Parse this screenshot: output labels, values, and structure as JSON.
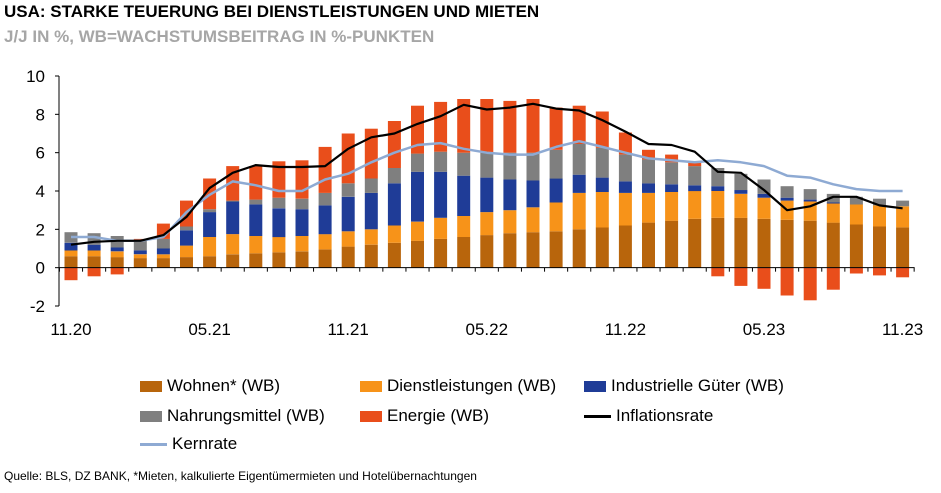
{
  "title": "USA: STARKE TEUERUNG BEI DIENSTLEISTUNGEN UND MIETEN",
  "subtitle": "J/J IN %, WB=WACHSTUMSBEITRAG IN %-PUNKTEN",
  "source": "Quelle: BLS, DZ BANK, *Mieten, kalkulierte Eigentümermieten und Hotelübernachtungen",
  "colors": {
    "wohnen": "#b8650c",
    "dienstleistungen": "#f79319",
    "gueter": "#1f3c97",
    "nahrungsmittel": "#7f7f7f",
    "energie": "#e94e1b",
    "inflationsrate": "#000000",
    "kernrate": "#8eaad3"
  },
  "legend": {
    "wohnen": "Wohnen* (WB)",
    "dienstleistungen": "Dienstleistungen (WB)",
    "gueter": "Industrielle Güter (WB)",
    "nahrungsmittel": "Nahrungsmittel (WB)",
    "energie": "Energie (WB)",
    "inflationsrate": "Inflationsrate",
    "kernrate": "Kernrate"
  },
  "chart_data": {
    "type": "bar",
    "stacked": true,
    "grid": false,
    "ylim": [
      -2,
      10
    ],
    "yticks": [
      "-2",
      "0",
      "2",
      "4",
      "6",
      "8",
      "10"
    ],
    "xtick_labels": [
      {
        "label": "11.20",
        "index": 0
      },
      {
        "label": "05.21",
        "index": 6
      },
      {
        "label": "11.21",
        "index": 12
      },
      {
        "label": "05.22",
        "index": 18
      },
      {
        "label": "11.22",
        "index": 24
      },
      {
        "label": "05.23",
        "index": 30
      },
      {
        "label": "11.23",
        "index": 36
      }
    ],
    "categories": [
      "11.20",
      "12.20",
      "01.21",
      "02.21",
      "03.21",
      "04.21",
      "05.21",
      "06.21",
      "07.21",
      "08.21",
      "09.21",
      "10.21",
      "11.21",
      "12.21",
      "01.22",
      "02.22",
      "03.22",
      "04.22",
      "05.22",
      "06.22",
      "07.22",
      "08.22",
      "09.22",
      "10.22",
      "11.22",
      "12.22",
      "01.23",
      "02.23",
      "03.23",
      "04.23",
      "05.23",
      "06.23",
      "07.23",
      "08.23",
      "09.23",
      "10.23",
      "11.23"
    ],
    "series": [
      {
        "name": "Wohnen* (WB)",
        "kind": "bar",
        "color_key": "wohnen",
        "values": [
          0.6,
          0.6,
          0.55,
          0.5,
          0.5,
          0.55,
          0.6,
          0.7,
          0.75,
          0.8,
          0.85,
          0.95,
          1.1,
          1.2,
          1.3,
          1.4,
          1.5,
          1.6,
          1.7,
          1.8,
          1.85,
          1.9,
          2.0,
          2.1,
          2.2,
          2.35,
          2.45,
          2.55,
          2.6,
          2.6,
          2.55,
          2.5,
          2.45,
          2.35,
          2.25,
          2.15,
          2.1
        ]
      },
      {
        "name": "Dienstleistungen (WB)",
        "kind": "bar",
        "color_key": "dienstleistungen",
        "values": [
          0.3,
          0.3,
          0.3,
          0.2,
          0.2,
          0.6,
          1.0,
          1.05,
          0.9,
          0.8,
          0.8,
          0.8,
          0.8,
          0.8,
          0.9,
          1.0,
          1.1,
          1.1,
          1.2,
          1.2,
          1.3,
          1.5,
          1.9,
          1.85,
          1.7,
          1.55,
          1.5,
          1.45,
          1.4,
          1.25,
          1.1,
          1.0,
          1.0,
          1.0,
          1.05,
          1.1,
          1.1
        ]
      },
      {
        "name": "Industrielle Güter (WB)",
        "kind": "bar",
        "color_key": "gueter",
        "values": [
          0.4,
          0.3,
          0.2,
          0.2,
          0.3,
          0.8,
          1.3,
          1.7,
          1.65,
          1.5,
          1.4,
          1.5,
          1.8,
          1.9,
          2.2,
          2.6,
          2.4,
          2.1,
          1.8,
          1.6,
          1.4,
          1.25,
          0.95,
          0.75,
          0.6,
          0.5,
          0.4,
          0.3,
          0.25,
          0.2,
          0.2,
          0.15,
          0.1,
          0.05,
          0.0,
          0.0,
          0.0
        ]
      },
      {
        "name": "Nahrungsmittel (WB)",
        "kind": "bar",
        "color_key": "nahrungsmittel",
        "values": [
          0.55,
          0.6,
          0.6,
          0.5,
          0.5,
          0.2,
          0.15,
          0.05,
          0.25,
          0.55,
          0.55,
          0.65,
          0.7,
          0.75,
          0.8,
          0.95,
          1.05,
          1.2,
          1.3,
          1.4,
          1.45,
          1.5,
          1.6,
          1.55,
          1.4,
          1.25,
          1.15,
          1.0,
          0.95,
          0.85,
          0.75,
          0.6,
          0.55,
          0.45,
          0.4,
          0.35,
          0.3
        ]
      },
      {
        "name": "Energie (WB)",
        "kind": "bar",
        "color_key": "energie",
        "values": [
          -0.65,
          -0.45,
          -0.35,
          0.1,
          0.8,
          1.35,
          1.6,
          1.8,
          1.75,
          1.9,
          2.0,
          2.4,
          2.6,
          2.6,
          2.45,
          2.5,
          2.6,
          2.8,
          2.8,
          2.7,
          2.8,
          2.2,
          2.0,
          1.9,
          1.15,
          0.5,
          0.4,
          0.2,
          -0.45,
          -0.95,
          -1.1,
          -1.45,
          -1.7,
          -1.15,
          -0.3,
          -0.4,
          -0.5
        ]
      },
      {
        "name": "Inflationsrate",
        "kind": "line",
        "color_key": "inflationsrate",
        "values": [
          1.2,
          1.35,
          1.4,
          1.4,
          1.7,
          2.65,
          4.15,
          4.95,
          5.35,
          5.25,
          5.25,
          5.3,
          6.2,
          6.8,
          7.0,
          7.5,
          7.9,
          8.5,
          8.25,
          8.35,
          8.55,
          8.3,
          8.2,
          7.7,
          7.1,
          6.45,
          6.4,
          6.05,
          5.0,
          4.95,
          4.05,
          3.0,
          3.2,
          3.7,
          3.7,
          3.25,
          3.1
        ]
      },
      {
        "name": "Kernrate",
        "kind": "line",
        "color_key": "kernrate",
        "values": [
          1.6,
          1.6,
          1.4,
          1.4,
          1.6,
          2.9,
          3.8,
          4.5,
          4.3,
          4.0,
          4.0,
          4.6,
          4.9,
          5.5,
          6.0,
          6.4,
          6.5,
          6.2,
          6.0,
          5.9,
          5.9,
          6.3,
          6.6,
          6.3,
          6.0,
          5.7,
          5.6,
          5.5,
          5.6,
          5.5,
          5.3,
          4.8,
          4.7,
          4.35,
          4.1,
          4.0,
          4.0
        ]
      }
    ]
  }
}
